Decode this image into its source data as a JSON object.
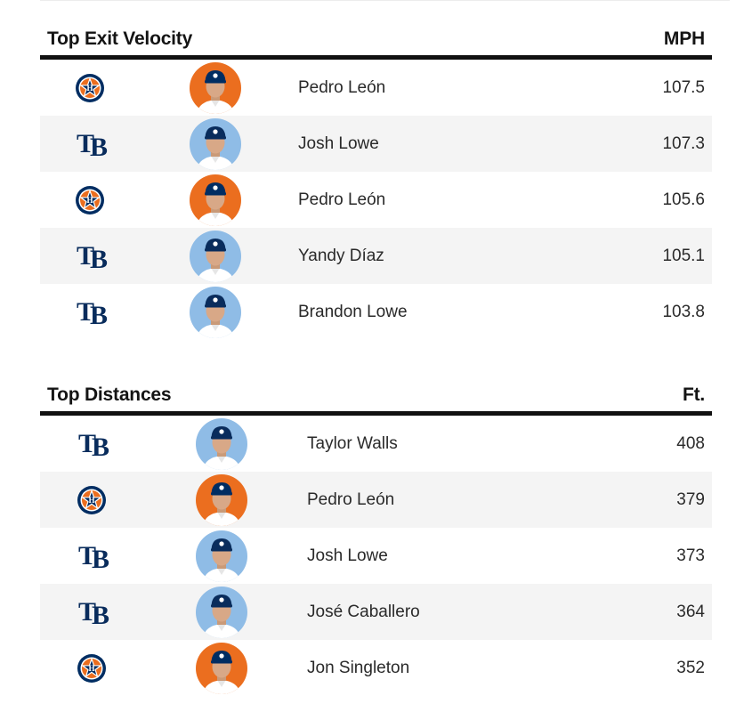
{
  "sections": [
    {
      "title": "Top Exit Velocity",
      "unit": "MPH",
      "rows": [
        {
          "team": "astros",
          "logo_icon": "astros-logo-icon",
          "player": "Pedro León",
          "value": "107.5"
        },
        {
          "team": "rays",
          "logo_icon": "rays-logo-icon",
          "player": "Josh Lowe",
          "value": "107.3"
        },
        {
          "team": "astros",
          "logo_icon": "astros-logo-icon",
          "player": "Pedro León",
          "value": "105.6"
        },
        {
          "team": "rays",
          "logo_icon": "rays-logo-icon",
          "player": "Yandy Díaz",
          "value": "105.1"
        },
        {
          "team": "rays",
          "logo_icon": "rays-logo-icon",
          "player": "Brandon Lowe",
          "value": "103.8"
        }
      ]
    },
    {
      "title": "Top Distances",
      "unit": "Ft.",
      "rows": [
        {
          "team": "rays",
          "logo_icon": "rays-logo-icon",
          "player": "Taylor Walls",
          "value": "408"
        },
        {
          "team": "astros",
          "logo_icon": "astros-logo-icon",
          "player": "Pedro León",
          "value": "379"
        },
        {
          "team": "rays",
          "logo_icon": "rays-logo-icon",
          "player": "Josh Lowe",
          "value": "373"
        },
        {
          "team": "rays",
          "logo_icon": "rays-logo-icon",
          "player": "José Caballero",
          "value": "364"
        },
        {
          "team": "astros",
          "logo_icon": "astros-logo-icon",
          "player": "Jon Singleton",
          "value": "352"
        }
      ]
    }
  ],
  "logo_text": {
    "rays": "TB"
  },
  "colors": {
    "astros_bg": "#eb6e1f",
    "astros_navy": "#002d62",
    "rays_bg": "#8fbce6",
    "rays_navy": "#092c5c",
    "row_alt": "#f4f4f4",
    "rule": "#111111"
  }
}
